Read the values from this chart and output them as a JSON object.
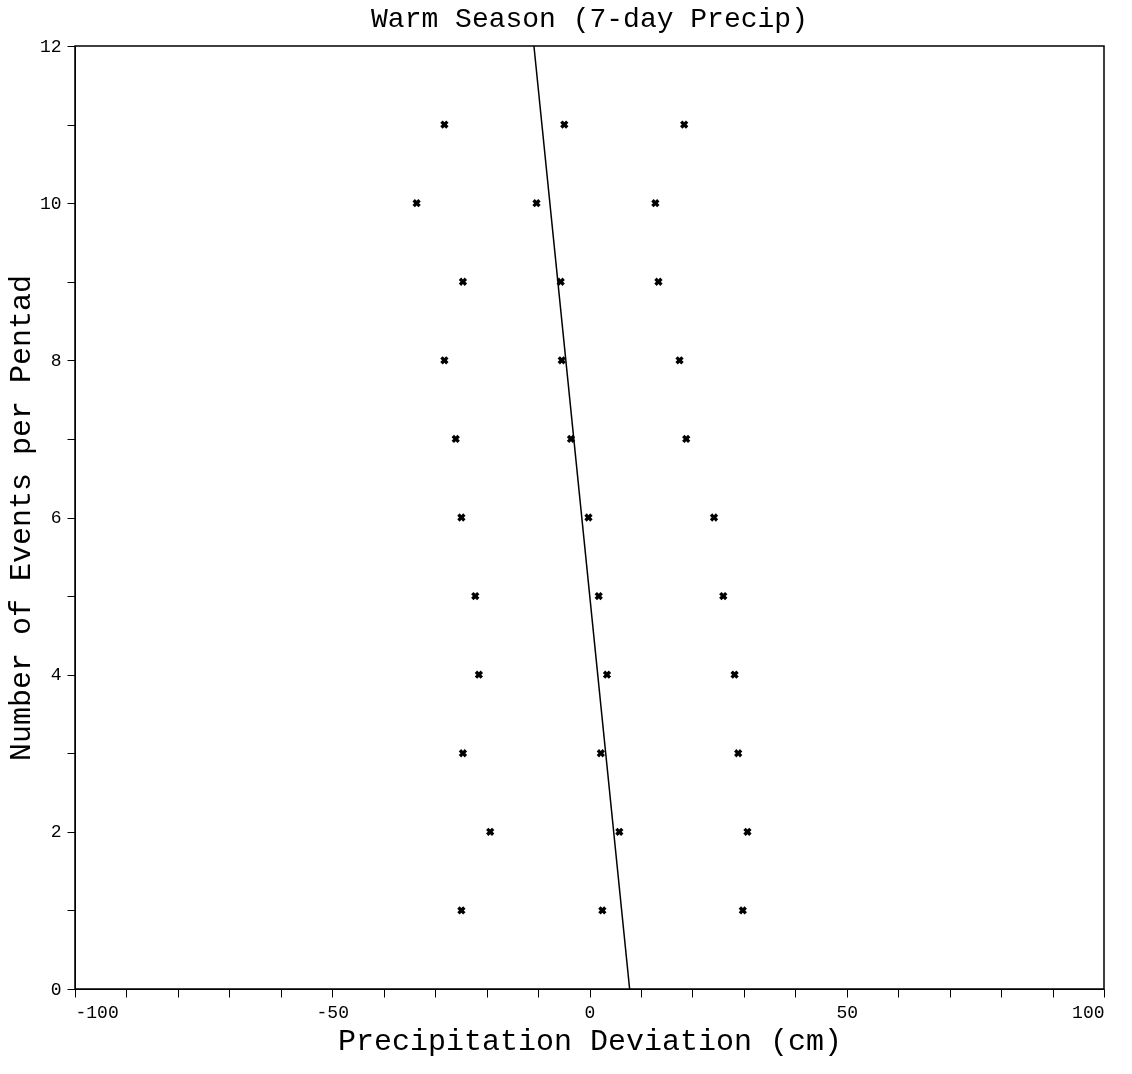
{
  "chart_data": {
    "type": "scatter",
    "title": "Warm Season (7-day Precip)",
    "xlabel": "Precipitation Deviation (cm)",
    "ylabel": "Number of Events per Pentad",
    "xlim": [
      -100,
      100
    ],
    "ylim": [
      0,
      12
    ],
    "xticks": [
      -100,
      {
        "value": -90,
        "label": null
      },
      {
        "value": -80,
        "label": null
      },
      {
        "value": -70,
        "label": null
      },
      {
        "value": -60,
        "label": null
      },
      -50,
      {
        "value": -40,
        "label": null
      },
      {
        "value": -30,
        "label": null
      },
      {
        "value": -20,
        "label": null
      },
      {
        "value": -10,
        "label": null
      },
      0,
      {
        "value": 10,
        "label": null
      },
      {
        "value": 20,
        "label": null
      },
      {
        "value": 30,
        "label": null
      },
      {
        "value": 40,
        "label": null
      },
      50,
      {
        "value": 60,
        "label": null
      },
      {
        "value": 70,
        "label": null
      },
      {
        "value": 80,
        "label": null
      },
      {
        "value": 90,
        "label": null
      },
      100
    ],
    "yticks": [
      0,
      {
        "value": 1,
        "label": null
      },
      2,
      {
        "value": 3,
        "label": null
      },
      4,
      {
        "value": 5,
        "label": null
      },
      6,
      {
        "value": 7,
        "label": null
      },
      8,
      {
        "value": 9,
        "label": null
      },
      10,
      {
        "value": 11,
        "label": null
      },
      12
    ],
    "grid": false,
    "marker": "cross",
    "series": [
      {
        "color": "#000000",
        "x": [
          -24.9,
          -19.3,
          -24.6,
          -21.5,
          -22.2,
          -24.9,
          -26.0,
          -28.2,
          -24.6,
          -33.6,
          -28.2
        ],
        "values": [
          1,
          2,
          3,
          4,
          5,
          6,
          7,
          8,
          9,
          10,
          11
        ]
      },
      {
        "color": "#000000",
        "x": [
          2.5,
          5.8,
          2.2,
          3.4,
          1.8,
          -0.2,
          -3.6,
          -5.4,
          -5.6,
          -10.3,
          -4.9
        ],
        "values": [
          1,
          2,
          3,
          4,
          5,
          6,
          7,
          8,
          9,
          10,
          11
        ]
      },
      {
        "color": "#000000",
        "x": [
          29.8,
          30.7,
          28.9,
          28.2,
          26.0,
          24.2,
          18.8,
          17.5,
          13.4,
          12.8,
          18.4
        ],
        "values": [
          1,
          2,
          3,
          4,
          5,
          6,
          7,
          8,
          9,
          10,
          11
        ]
      },
      {
        "type": "line",
        "marker": "none",
        "color": "#000000",
        "x": [
          7.8,
          -10.8
        ],
        "values": [
          0,
          12
        ]
      }
    ]
  }
}
